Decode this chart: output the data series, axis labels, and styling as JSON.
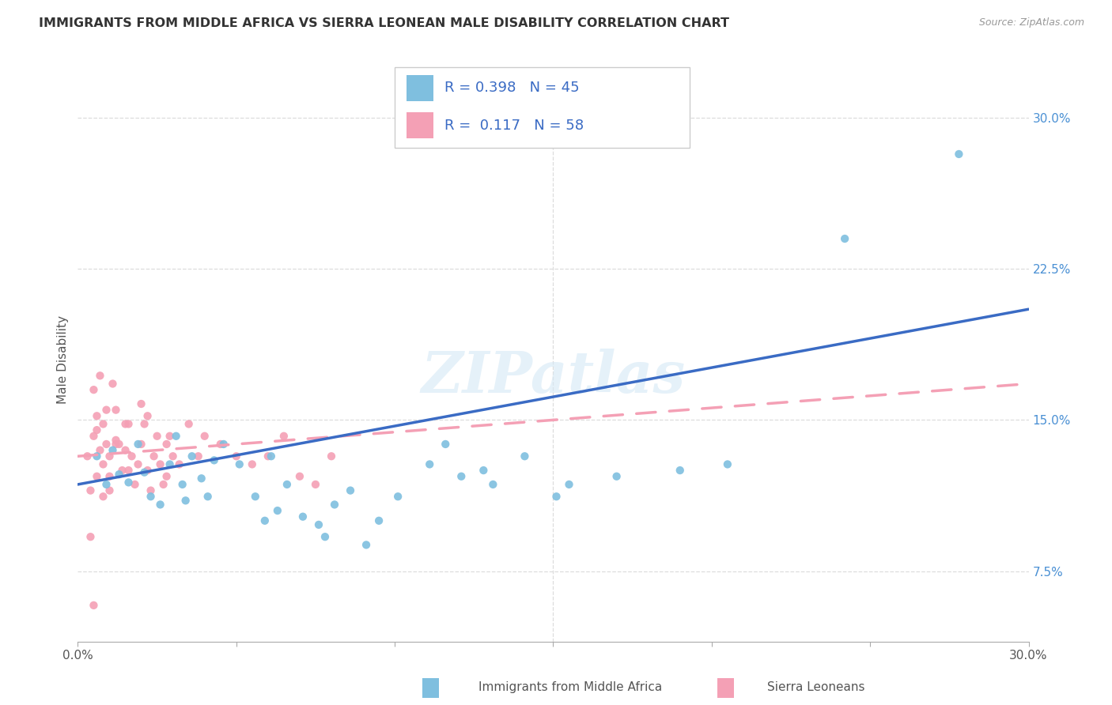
{
  "title": "IMMIGRANTS FROM MIDDLE AFRICA VS SIERRA LEONEAN MALE DISABILITY CORRELATION CHART",
  "source": "Source: ZipAtlas.com",
  "ylabel": "Male Disability",
  "xlim": [
    0.0,
    30.0
  ],
  "ylim": [
    4.0,
    32.0
  ],
  "x_ticks": [
    0.0,
    5.0,
    10.0,
    15.0,
    20.0,
    25.0,
    30.0
  ],
  "y_ticks_right": [
    7.5,
    15.0,
    22.5,
    30.0
  ],
  "y_tick_labels_right": [
    "7.5%",
    "15.0%",
    "22.5%",
    "30.0%"
  ],
  "blue_color": "#7fbfdf",
  "pink_color": "#f4a0b5",
  "blue_scatter": [
    [
      0.6,
      13.2
    ],
    [
      0.9,
      11.8
    ],
    [
      1.1,
      13.5
    ],
    [
      1.3,
      12.3
    ],
    [
      1.6,
      11.9
    ],
    [
      1.9,
      13.8
    ],
    [
      2.1,
      12.4
    ],
    [
      2.3,
      11.2
    ],
    [
      2.6,
      10.8
    ],
    [
      2.9,
      12.8
    ],
    [
      3.1,
      14.2
    ],
    [
      3.3,
      11.8
    ],
    [
      3.6,
      13.2
    ],
    [
      3.9,
      12.1
    ],
    [
      4.1,
      11.2
    ],
    [
      4.6,
      13.8
    ],
    [
      5.1,
      12.8
    ],
    [
      5.6,
      11.2
    ],
    [
      6.1,
      13.2
    ],
    [
      6.6,
      11.8
    ],
    [
      7.1,
      10.2
    ],
    [
      7.6,
      9.8
    ],
    [
      8.1,
      10.8
    ],
    [
      9.1,
      8.8
    ],
    [
      10.1,
      11.2
    ],
    [
      11.1,
      12.8
    ],
    [
      12.1,
      12.2
    ],
    [
      13.1,
      11.8
    ],
    [
      14.1,
      13.2
    ],
    [
      15.1,
      11.2
    ],
    [
      4.3,
      13.0
    ],
    [
      5.9,
      10.0
    ],
    [
      8.6,
      11.5
    ],
    [
      11.6,
      13.8
    ],
    [
      3.4,
      11.0
    ],
    [
      6.3,
      10.5
    ],
    [
      7.8,
      9.2
    ],
    [
      9.5,
      10.0
    ],
    [
      12.8,
      12.5
    ],
    [
      17.0,
      12.2
    ],
    [
      20.5,
      12.8
    ],
    [
      24.2,
      24.0
    ],
    [
      27.8,
      28.2
    ],
    [
      15.5,
      11.8
    ],
    [
      19.0,
      12.5
    ]
  ],
  "pink_scatter": [
    [
      0.3,
      13.2
    ],
    [
      0.4,
      11.5
    ],
    [
      0.5,
      14.2
    ],
    [
      0.5,
      16.5
    ],
    [
      0.6,
      15.2
    ],
    [
      0.6,
      14.5
    ],
    [
      0.7,
      17.2
    ],
    [
      0.7,
      13.5
    ],
    [
      0.8,
      14.8
    ],
    [
      0.8,
      12.8
    ],
    [
      0.9,
      13.8
    ],
    [
      0.9,
      15.5
    ],
    [
      1.0,
      13.2
    ],
    [
      1.0,
      12.2
    ],
    [
      1.0,
      11.5
    ],
    [
      1.1,
      16.8
    ],
    [
      1.2,
      15.5
    ],
    [
      1.2,
      14.0
    ],
    [
      1.3,
      13.8
    ],
    [
      1.4,
      12.5
    ],
    [
      1.5,
      13.5
    ],
    [
      1.5,
      14.8
    ],
    [
      1.6,
      12.5
    ],
    [
      1.7,
      13.2
    ],
    [
      1.8,
      11.8
    ],
    [
      1.9,
      12.8
    ],
    [
      2.0,
      13.8
    ],
    [
      2.0,
      15.8
    ],
    [
      2.1,
      14.8
    ],
    [
      2.2,
      12.5
    ],
    [
      2.3,
      11.5
    ],
    [
      2.4,
      13.2
    ],
    [
      2.5,
      14.2
    ],
    [
      2.6,
      12.8
    ],
    [
      2.7,
      11.8
    ],
    [
      2.8,
      13.8
    ],
    [
      2.9,
      14.2
    ],
    [
      3.0,
      13.2
    ],
    [
      3.2,
      12.8
    ],
    [
      3.5,
      14.8
    ],
    [
      3.8,
      13.2
    ],
    [
      4.0,
      14.2
    ],
    [
      4.5,
      13.8
    ],
    [
      5.0,
      13.2
    ],
    [
      5.5,
      12.8
    ],
    [
      6.0,
      13.2
    ],
    [
      6.5,
      14.2
    ],
    [
      7.0,
      12.2
    ],
    [
      7.5,
      11.8
    ],
    [
      8.0,
      13.2
    ],
    [
      0.4,
      9.2
    ],
    [
      0.5,
      5.8
    ],
    [
      0.6,
      12.2
    ],
    [
      0.8,
      11.2
    ],
    [
      1.2,
      13.8
    ],
    [
      1.6,
      14.8
    ],
    [
      2.2,
      15.2
    ],
    [
      2.8,
      12.2
    ]
  ],
  "blue_R": 0.398,
  "blue_N": 45,
  "pink_R": 0.117,
  "pink_N": 58,
  "blue_line_x": [
    0.0,
    30.0
  ],
  "blue_line_y": [
    11.8,
    20.5
  ],
  "pink_line_x": [
    0.0,
    30.0
  ],
  "pink_line_y": [
    13.2,
    16.8
  ],
  "watermark": "ZIPatlas",
  "legend_blue_label": "Immigrants from Middle Africa",
  "legend_pink_label": "Sierra Leoneans"
}
